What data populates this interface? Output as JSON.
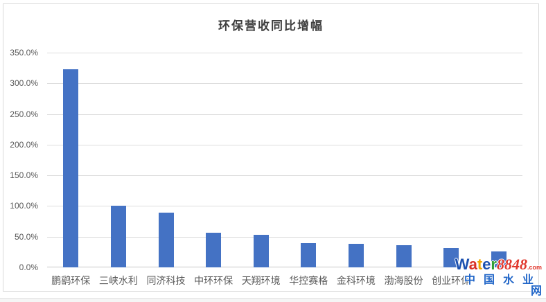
{
  "chart_data": {
    "type": "bar",
    "title": "环保营收同比增幅",
    "categories": [
      "鹏鹞环保",
      "三峡水利",
      "同济科技",
      "中环环保",
      "天翔环境",
      "华控赛格",
      "金科环境",
      "渤海股份",
      "创业环保",
      ""
    ],
    "values": [
      323,
      100,
      89,
      56,
      53,
      40,
      38,
      36,
      32,
      26
    ],
    "value_unit": "percent",
    "xlabel": "",
    "ylabel": "",
    "ylim": [
      0,
      350
    ],
    "ytick_step": 50,
    "ytick_labels": [
      "0.0%",
      "50.0%",
      "100.0%",
      "150.0%",
      "200.0%",
      "250.0%",
      "300.0%",
      "350.0%"
    ],
    "grid": "horizontal",
    "legend": "none",
    "bar_color": "#4472C4",
    "gridline_color": "#DCDCDC",
    "axis_line_color": "#C6C6C6",
    "axis_label_color": "#595959",
    "title_color": "#3F3F3F"
  },
  "watermark": {
    "brand_letters": [
      {
        "text": "W",
        "color": "#1C51B0"
      },
      {
        "text": "a",
        "color": "#D93025"
      },
      {
        "text": "t",
        "color": "#F0A500"
      },
      {
        "text": "e",
        "color": "#1C51B0"
      },
      {
        "text": "r",
        "color": "#2F9E34"
      },
      {
        "text": "8848",
        "color": "#E0362C"
      }
    ],
    "suffix": ".com",
    "suffix_color": "#E0362C",
    "site_name": "中国水业网",
    "site_name_color": "#2166C8"
  }
}
